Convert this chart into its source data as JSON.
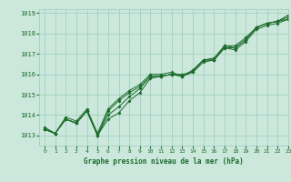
{
  "title": "Graphe pression niveau de la mer (hPa)",
  "bg_color": "#cce8dc",
  "grid_color": "#99ccbb",
  "line_color": "#1a6b2a",
  "xlim": [
    -0.5,
    23
  ],
  "ylim": [
    1012.5,
    1019.2
  ],
  "yticks": [
    1013,
    1014,
    1015,
    1016,
    1017,
    1018,
    1019
  ],
  "xticks": [
    0,
    1,
    2,
    3,
    4,
    5,
    6,
    7,
    8,
    9,
    10,
    11,
    12,
    13,
    14,
    15,
    16,
    17,
    18,
    19,
    20,
    21,
    22,
    23
  ],
  "series": [
    [
      1013.3,
      1013.1,
      1013.8,
      1013.6,
      1014.2,
      1013.0,
      1013.8,
      1014.1,
      1014.7,
      1015.1,
      1015.8,
      1015.9,
      1016.0,
      1015.9,
      1016.2,
      1016.7,
      1016.7,
      1017.3,
      1017.3,
      1017.7,
      1018.3,
      1018.5,
      1018.6,
      1018.7
    ],
    [
      1013.3,
      1013.1,
      1013.8,
      1013.6,
      1014.2,
      1013.0,
      1014.2,
      1014.7,
      1015.1,
      1015.4,
      1015.9,
      1015.9,
      1016.0,
      1016.0,
      1016.1,
      1016.7,
      1016.8,
      1017.4,
      1017.3,
      1017.7,
      1018.3,
      1018.5,
      1018.6,
      1018.8
    ],
    [
      1013.4,
      1013.1,
      1013.9,
      1013.7,
      1014.3,
      1013.1,
      1014.3,
      1014.8,
      1015.2,
      1015.5,
      1016.0,
      1016.0,
      1016.1,
      1015.9,
      1016.2,
      1016.7,
      1016.7,
      1017.4,
      1017.4,
      1017.8,
      1018.3,
      1018.5,
      1018.6,
      1018.9
    ],
    [
      1013.3,
      1013.1,
      1013.8,
      1013.6,
      1014.2,
      1013.0,
      1014.0,
      1014.4,
      1014.9,
      1015.3,
      1015.9,
      1015.9,
      1016.0,
      1015.9,
      1016.1,
      1016.6,
      1016.7,
      1017.3,
      1017.2,
      1017.6,
      1018.2,
      1018.4,
      1018.5,
      1018.7
    ]
  ]
}
